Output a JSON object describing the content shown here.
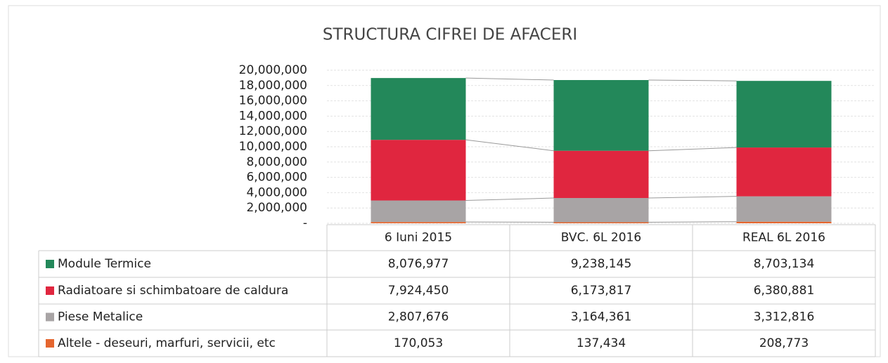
{
  "chart_data": {
    "type": "stacked_bar",
    "title": "STRUCTURA CIFREI DE AFACERI",
    "categories": [
      "6 Iuni 2015",
      "BVC. 6L 2016",
      "REAL 6L 2016"
    ],
    "series": [
      {
        "name": "Module Termice",
        "color": "#23885a",
        "values": [
          8076977,
          9238145,
          8703134
        ],
        "value_labels": [
          "8,076,977",
          "9,238,145",
          "8,703,134"
        ]
      },
      {
        "name": "Radiatoare si schimbatoare de caldura",
        "color": "#e0263f",
        "values": [
          7924450,
          6173817,
          6380881
        ],
        "value_labels": [
          "7,924,450",
          "6,173,817",
          "6,380,881"
        ]
      },
      {
        "name": "Piese Metalice",
        "color": "#a8a4a5",
        "values": [
          2807676,
          3164361,
          3312816
        ],
        "value_labels": [
          "2,807,676",
          "3,164,361",
          "3,312,816"
        ]
      },
      {
        "name": "Altele - deseuri, marfuri, servicii, etc",
        "color": "#e5662f",
        "values": [
          170053,
          137434,
          208773
        ],
        "value_labels": [
          "170,053",
          "137,434",
          "208,773"
        ]
      }
    ],
    "ylim": [
      0,
      20000000
    ],
    "yticks": [
      {
        "value": 0,
        "label": "-"
      },
      {
        "value": 2000000,
        "label": "2,000,000"
      },
      {
        "value": 4000000,
        "label": "4,000,000"
      },
      {
        "value": 6000000,
        "label": "6,000,000"
      },
      {
        "value": 8000000,
        "label": "8,000,000"
      },
      {
        "value": 10000000,
        "label": "10,000,000"
      },
      {
        "value": 12000000,
        "label": "12,000,000"
      },
      {
        "value": 14000000,
        "label": "14,000,000"
      },
      {
        "value": 16000000,
        "label": "16,000,000"
      },
      {
        "value": 18000000,
        "label": "18,000,000"
      },
      {
        "value": 20000000,
        "label": "20,000,000"
      }
    ],
    "grid": true,
    "legend": "table"
  }
}
